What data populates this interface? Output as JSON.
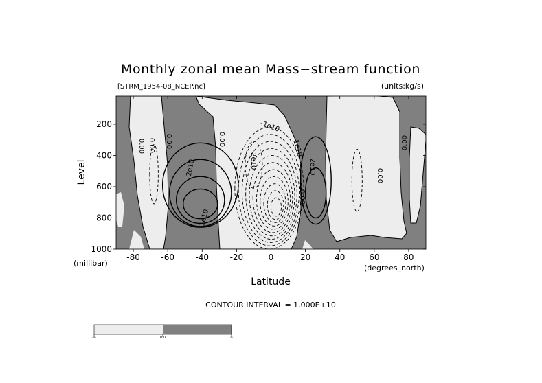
{
  "chart_data": {
    "type": "contour",
    "title": "Monthly zonal mean Mass−stream function",
    "file_label": "[STRM_1954-08_NCEP.nc]",
    "units_label": "(units:kg/s)",
    "xlabel": "Latitude",
    "x_unit": "(degrees_north)",
    "ylabel": "Level",
    "y_unit": "(millibar)",
    "xlim": [
      -90,
      90
    ],
    "ylim": [
      1000,
      20
    ],
    "y_inverted": true,
    "x_ticks": [
      -80,
      -60,
      -40,
      -20,
      0,
      20,
      40,
      60,
      80
    ],
    "y_ticks": [
      200,
      400,
      600,
      800,
      1000
    ],
    "contour_interval_text": "CONTOUR INTERVAL = 1.000E+10",
    "contour_interval": 10000000000.0,
    "contour_labels": [
      "0.00",
      "0.00",
      "0.00",
      "0.00",
      "0.00",
      "0.00",
      "0.00",
      "0.00",
      "2e10",
      "1e10",
      "2e10",
      "-2e10",
      "-1e10",
      "-1e10"
    ],
    "fill_colors": {
      "negative": "#ededed",
      "positive": "#808080"
    },
    "colorbar": {
      "labels": [
        "-∞",
        "0.0",
        "∞"
      ],
      "colors": [
        "#ededed",
        "#808080"
      ]
    },
    "line_color": "#000000"
  }
}
